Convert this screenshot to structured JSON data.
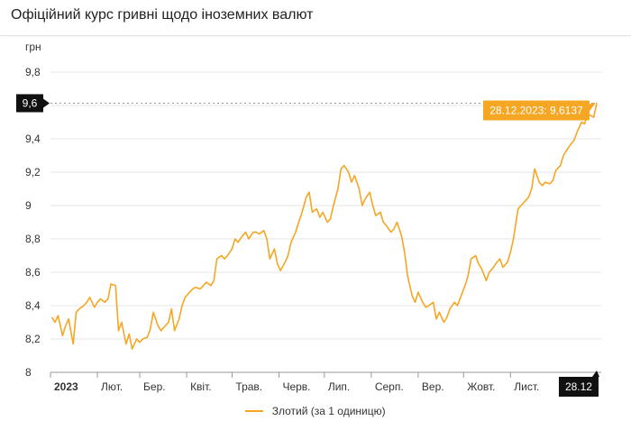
{
  "header": {
    "title": "Офіційний курс гривні щодо іноземних валют"
  },
  "colors": {
    "series": "#f5a623",
    "grid": "#e6e6e6",
    "marker_bg": "#111111",
    "tooltip_bg": "#f5a623"
  },
  "chart_data": {
    "type": "line",
    "ylabel": "грн",
    "ylim": [
      8,
      9.8
    ],
    "yticks": [
      "8",
      "8,2",
      "8,4",
      "8,6",
      "8,8",
      "9",
      "9,2",
      "9,4",
      "9,6",
      "9,8"
    ],
    "ytick_values": [
      8,
      8.2,
      8.4,
      8.6,
      8.8,
      9,
      9.2,
      9.4,
      9.6,
      9.8
    ],
    "xlim": [
      "2023-01-01",
      "2023-12-31"
    ],
    "xticks": [
      {
        "label": "2023",
        "date": "2023-01-01",
        "bold": true
      },
      {
        "label": "Лют.",
        "date": "2023-02-01"
      },
      {
        "label": "Бер.",
        "date": "2023-03-01"
      },
      {
        "label": "Квіт.",
        "date": "2023-04-01"
      },
      {
        "label": "Трав.",
        "date": "2023-05-01"
      },
      {
        "label": "Черв.",
        "date": "2023-06-01"
      },
      {
        "label": "Лип.",
        "date": "2023-07-01"
      },
      {
        "label": "Серп.",
        "date": "2023-08-01"
      },
      {
        "label": "Вер.",
        "date": "2023-09-01"
      },
      {
        "label": "Жовт.",
        "date": "2023-10-01"
      },
      {
        "label": "Лист.",
        "date": "2023-11-01"
      }
    ],
    "crosshair": {
      "date": "2023-12-28",
      "value": 9.6137,
      "x_label": "28.12",
      "y_label": "9,6",
      "tooltip": "28.12.2023: 9,6137"
    },
    "legend_position": "bottom",
    "series": [
      {
        "name": "Злотий (за 1 одиницю)",
        "points": [
          [
            "2023-01-02",
            8.33
          ],
          [
            "2023-01-04",
            8.3
          ],
          [
            "2023-01-06",
            8.34
          ],
          [
            "2023-01-09",
            8.22
          ],
          [
            "2023-01-11",
            8.28
          ],
          [
            "2023-01-13",
            8.32
          ],
          [
            "2023-01-16",
            8.17
          ],
          [
            "2023-01-18",
            8.36
          ],
          [
            "2023-01-20",
            8.38
          ],
          [
            "2023-01-23",
            8.4
          ],
          [
            "2023-01-25",
            8.42
          ],
          [
            "2023-01-27",
            8.45
          ],
          [
            "2023-01-30",
            8.39
          ],
          [
            "2023-02-01",
            8.42
          ],
          [
            "2023-02-03",
            8.44
          ],
          [
            "2023-02-06",
            8.42
          ],
          [
            "2023-02-08",
            8.44
          ],
          [
            "2023-02-10",
            8.53
          ],
          [
            "2023-02-13",
            8.52
          ],
          [
            "2023-02-15",
            8.25
          ],
          [
            "2023-02-17",
            8.3
          ],
          [
            "2023-02-20",
            8.17
          ],
          [
            "2023-02-22",
            8.23
          ],
          [
            "2023-02-24",
            8.14
          ],
          [
            "2023-02-27",
            8.2
          ],
          [
            "2023-03-01",
            8.18
          ],
          [
            "2023-03-03",
            8.2
          ],
          [
            "2023-03-06",
            8.21
          ],
          [
            "2023-03-08",
            8.26
          ],
          [
            "2023-03-10",
            8.36
          ],
          [
            "2023-03-13",
            8.28
          ],
          [
            "2023-03-15",
            8.25
          ],
          [
            "2023-03-17",
            8.27
          ],
          [
            "2023-03-20",
            8.3
          ],
          [
            "2023-03-22",
            8.38
          ],
          [
            "2023-03-24",
            8.25
          ],
          [
            "2023-03-27",
            8.32
          ],
          [
            "2023-03-29",
            8.4
          ],
          [
            "2023-03-31",
            8.45
          ],
          [
            "2023-04-03",
            8.48
          ],
          [
            "2023-04-05",
            8.5
          ],
          [
            "2023-04-07",
            8.51
          ],
          [
            "2023-04-10",
            8.5
          ],
          [
            "2023-04-12",
            8.52
          ],
          [
            "2023-04-14",
            8.54
          ],
          [
            "2023-04-17",
            8.52
          ],
          [
            "2023-04-19",
            8.55
          ],
          [
            "2023-04-21",
            8.68
          ],
          [
            "2023-04-24",
            8.7
          ],
          [
            "2023-04-26",
            8.68
          ],
          [
            "2023-04-28",
            8.7
          ],
          [
            "2023-05-01",
            8.74
          ],
          [
            "2023-05-03",
            8.8
          ],
          [
            "2023-05-05",
            8.78
          ],
          [
            "2023-05-08",
            8.82
          ],
          [
            "2023-05-10",
            8.84
          ],
          [
            "2023-05-12",
            8.8
          ],
          [
            "2023-05-15",
            8.84
          ],
          [
            "2023-05-17",
            8.84
          ],
          [
            "2023-05-19",
            8.83
          ],
          [
            "2023-05-22",
            8.85
          ],
          [
            "2023-05-24",
            8.8
          ],
          [
            "2023-05-26",
            8.68
          ],
          [
            "2023-05-29",
            8.74
          ],
          [
            "2023-05-31",
            8.65
          ],
          [
            "2023-06-02",
            8.61
          ],
          [
            "2023-06-05",
            8.66
          ],
          [
            "2023-06-07",
            8.7
          ],
          [
            "2023-06-09",
            8.78
          ],
          [
            "2023-06-12",
            8.84
          ],
          [
            "2023-06-14",
            8.9
          ],
          [
            "2023-06-16",
            8.95
          ],
          [
            "2023-06-19",
            9.05
          ],
          [
            "2023-06-21",
            9.08
          ],
          [
            "2023-06-23",
            8.96
          ],
          [
            "2023-06-26",
            8.98
          ],
          [
            "2023-06-28",
            8.93
          ],
          [
            "2023-06-30",
            8.96
          ],
          [
            "2023-07-03",
            8.9
          ],
          [
            "2023-07-05",
            8.92
          ],
          [
            "2023-07-07",
            9.0
          ],
          [
            "2023-07-10",
            9.1
          ],
          [
            "2023-07-12",
            9.22
          ],
          [
            "2023-07-14",
            9.24
          ],
          [
            "2023-07-17",
            9.2
          ],
          [
            "2023-07-19",
            9.14
          ],
          [
            "2023-07-21",
            9.18
          ],
          [
            "2023-07-24",
            9.1
          ],
          [
            "2023-07-26",
            9.0
          ],
          [
            "2023-07-28",
            9.04
          ],
          [
            "2023-07-31",
            9.08
          ],
          [
            "2023-08-02",
            9.0
          ],
          [
            "2023-08-04",
            8.94
          ],
          [
            "2023-08-07",
            8.96
          ],
          [
            "2023-08-09",
            8.9
          ],
          [
            "2023-08-11",
            8.88
          ],
          [
            "2023-08-14",
            8.84
          ],
          [
            "2023-08-16",
            8.86
          ],
          [
            "2023-08-18",
            8.9
          ],
          [
            "2023-08-21",
            8.82
          ],
          [
            "2023-08-23",
            8.72
          ],
          [
            "2023-08-25",
            8.58
          ],
          [
            "2023-08-28",
            8.46
          ],
          [
            "2023-08-30",
            8.42
          ],
          [
            "2023-09-01",
            8.48
          ],
          [
            "2023-09-04",
            8.42
          ],
          [
            "2023-09-06",
            8.39
          ],
          [
            "2023-09-08",
            8.4
          ],
          [
            "2023-09-11",
            8.42
          ],
          [
            "2023-09-13",
            8.32
          ],
          [
            "2023-09-15",
            8.36
          ],
          [
            "2023-09-18",
            8.3
          ],
          [
            "2023-09-20",
            8.33
          ],
          [
            "2023-09-22",
            8.38
          ],
          [
            "2023-09-25",
            8.42
          ],
          [
            "2023-09-27",
            8.4
          ],
          [
            "2023-09-29",
            8.45
          ],
          [
            "2023-10-02",
            8.52
          ],
          [
            "2023-10-04",
            8.58
          ],
          [
            "2023-10-06",
            8.68
          ],
          [
            "2023-10-09",
            8.7
          ],
          [
            "2023-10-11",
            8.65
          ],
          [
            "2023-10-13",
            8.62
          ],
          [
            "2023-10-16",
            8.55
          ],
          [
            "2023-10-18",
            8.6
          ],
          [
            "2023-10-20",
            8.62
          ],
          [
            "2023-10-23",
            8.66
          ],
          [
            "2023-10-25",
            8.68
          ],
          [
            "2023-10-27",
            8.63
          ],
          [
            "2023-10-30",
            8.66
          ],
          [
            "2023-11-01",
            8.72
          ],
          [
            "2023-11-03",
            8.8
          ],
          [
            "2023-11-06",
            8.98
          ],
          [
            "2023-11-08",
            9.0
          ],
          [
            "2023-11-10",
            9.02
          ],
          [
            "2023-11-13",
            9.05
          ],
          [
            "2023-11-15",
            9.1
          ],
          [
            "2023-11-17",
            9.22
          ],
          [
            "2023-11-20",
            9.14
          ],
          [
            "2023-11-22",
            9.12
          ],
          [
            "2023-11-24",
            9.14
          ],
          [
            "2023-11-27",
            9.13
          ],
          [
            "2023-11-29",
            9.15
          ],
          [
            "2023-12-01",
            9.21
          ],
          [
            "2023-12-04",
            9.24
          ],
          [
            "2023-12-06",
            9.3
          ],
          [
            "2023-12-08",
            9.33
          ],
          [
            "2023-12-11",
            9.37
          ],
          [
            "2023-12-13",
            9.39
          ],
          [
            "2023-12-15",
            9.44
          ],
          [
            "2023-12-18",
            9.5
          ],
          [
            "2023-12-20",
            9.49
          ],
          [
            "2023-12-22",
            9.55
          ],
          [
            "2023-12-26",
            9.53
          ],
          [
            "2023-12-28",
            9.6137
          ]
        ]
      }
    ]
  }
}
